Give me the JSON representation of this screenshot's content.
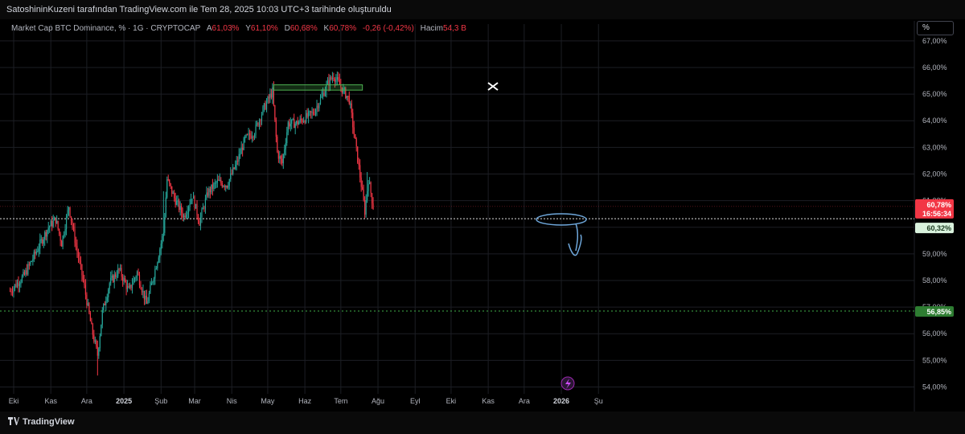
{
  "header": {
    "title": "SatoshininKuzeni tarafından TradingView.com ile Tem 28, 2025 10:03 UTC+3 tarihinde oluşturuldu"
  },
  "legend": {
    "symbol": "Market Cap BTC Dominance, % · 1G · CRYPTOCAP",
    "open_label": "A",
    "open": "61,03%",
    "high_label": "Y",
    "high": "61,10%",
    "low_label": "D",
    "low": "60,68%",
    "close_label": "K",
    "close": "60,78%",
    "change": "-0,26 (-0,42%)",
    "volume_label": "Hacim",
    "volume": "54,3 B"
  },
  "scale_button": "%",
  "price_tags": {
    "last": "60,78%",
    "countdown": "16:56:34",
    "reference": "60,32%",
    "support": "56,85%"
  },
  "footer": {
    "brand": "TradingView"
  },
  "colors": {
    "up": "#26a69a",
    "down": "#f23645",
    "zone": "#4caf50",
    "annotation": "#6fa8dc",
    "grid": "#1c1e24"
  },
  "chart_data": {
    "type": "candlestick",
    "title": "",
    "xlabel": "",
    "ylabel": "",
    "ylim": [
      54.0,
      67.0
    ],
    "y_ticks": [
      "54,00%",
      "55,00%",
      "56,00%",
      "57,00%",
      "58,00%",
      "59,00%",
      "60,00%",
      "61,00%",
      "62,00%",
      "63,00%",
      "64,00%",
      "65,00%",
      "66,00%",
      "67,00%"
    ],
    "y_tick_values": [
      54,
      55,
      56,
      57,
      58,
      59,
      60,
      61,
      62,
      63,
      64,
      65,
      66,
      67
    ],
    "x_ticks": [
      "Eki",
      "Kas",
      "Ara",
      "2025",
      "Şub",
      "Mar",
      "Nis",
      "May",
      "Haz",
      "Tem",
      "Ağu",
      "Eyl",
      "Eki",
      "Kas",
      "Ara",
      "2026",
      "Şu"
    ],
    "x_tick_bold": [
      false,
      false,
      false,
      true,
      false,
      false,
      false,
      false,
      false,
      false,
      false,
      false,
      false,
      false,
      false,
      true,
      false
    ],
    "x_range": [
      "2024-09-28",
      "2026-02-01"
    ],
    "x_tick_dates": [
      "2024-10-01",
      "2024-11-01",
      "2024-12-01",
      "2025-01-01",
      "2025-02-01",
      "2025-03-01",
      "2025-04-01",
      "2025-05-01",
      "2025-06-01",
      "2025-07-01",
      "2025-08-01",
      "2025-09-01",
      "2025-10-01",
      "2025-11-01",
      "2025-12-01",
      "2026-01-01",
      "2026-02-01"
    ],
    "price_path": [
      [
        "2024-09-28",
        57.6
      ],
      [
        "2024-10-10",
        58.2
      ],
      [
        "2024-10-20",
        59.1
      ],
      [
        "2024-10-30",
        60.0
      ],
      [
        "2024-11-05",
        60.3
      ],
      [
        "2024-11-10",
        59.4
      ],
      [
        "2024-11-16",
        60.8
      ],
      [
        "2024-11-22",
        59.3
      ],
      [
        "2024-11-28",
        58.0
      ],
      [
        "2024-12-05",
        56.2
      ],
      [
        "2024-12-10",
        55.2
      ],
      [
        "2024-12-14",
        56.8
      ],
      [
        "2024-12-20",
        57.9
      ],
      [
        "2024-12-28",
        58.4
      ],
      [
        "2025-01-05",
        57.6
      ],
      [
        "2025-01-12",
        58.3
      ],
      [
        "2025-01-20",
        57.1
      ],
      [
        "2025-01-28",
        58.6
      ],
      [
        "2025-02-03",
        59.8
      ],
      [
        "2025-02-06",
        61.8
      ],
      [
        "2025-02-12",
        61.1
      ],
      [
        "2025-02-20",
        60.4
      ],
      [
        "2025-02-27",
        61.2
      ],
      [
        "2025-03-05",
        60.2
      ],
      [
        "2025-03-12",
        61.3
      ],
      [
        "2025-03-20",
        61.7
      ],
      [
        "2025-03-28",
        61.6
      ],
      [
        "2025-04-05",
        62.4
      ],
      [
        "2025-04-12",
        63.3
      ],
      [
        "2025-04-20",
        63.6
      ],
      [
        "2025-04-27",
        64.4
      ],
      [
        "2025-05-05",
        65.1
      ],
      [
        "2025-05-09",
        62.8
      ],
      [
        "2025-05-13",
        62.4
      ],
      [
        "2025-05-18",
        63.9
      ],
      [
        "2025-05-25",
        63.9
      ],
      [
        "2025-06-01",
        64.1
      ],
      [
        "2025-06-08",
        64.3
      ],
      [
        "2025-06-15",
        64.9
      ],
      [
        "2025-06-20",
        65.4
      ],
      [
        "2025-06-25",
        65.7
      ],
      [
        "2025-07-02",
        65.2
      ],
      [
        "2025-07-08",
        64.8
      ],
      [
        "2025-07-13",
        63.2
      ],
      [
        "2025-07-18",
        61.6
      ],
      [
        "2025-07-21",
        60.6
      ],
      [
        "2025-07-24",
        61.8
      ],
      [
        "2025-07-28",
        60.78
      ]
    ],
    "last_value": 60.78,
    "reference_level": 60.32,
    "support_level": 56.85,
    "resistance_zone": [
      65.15,
      65.35
    ]
  }
}
